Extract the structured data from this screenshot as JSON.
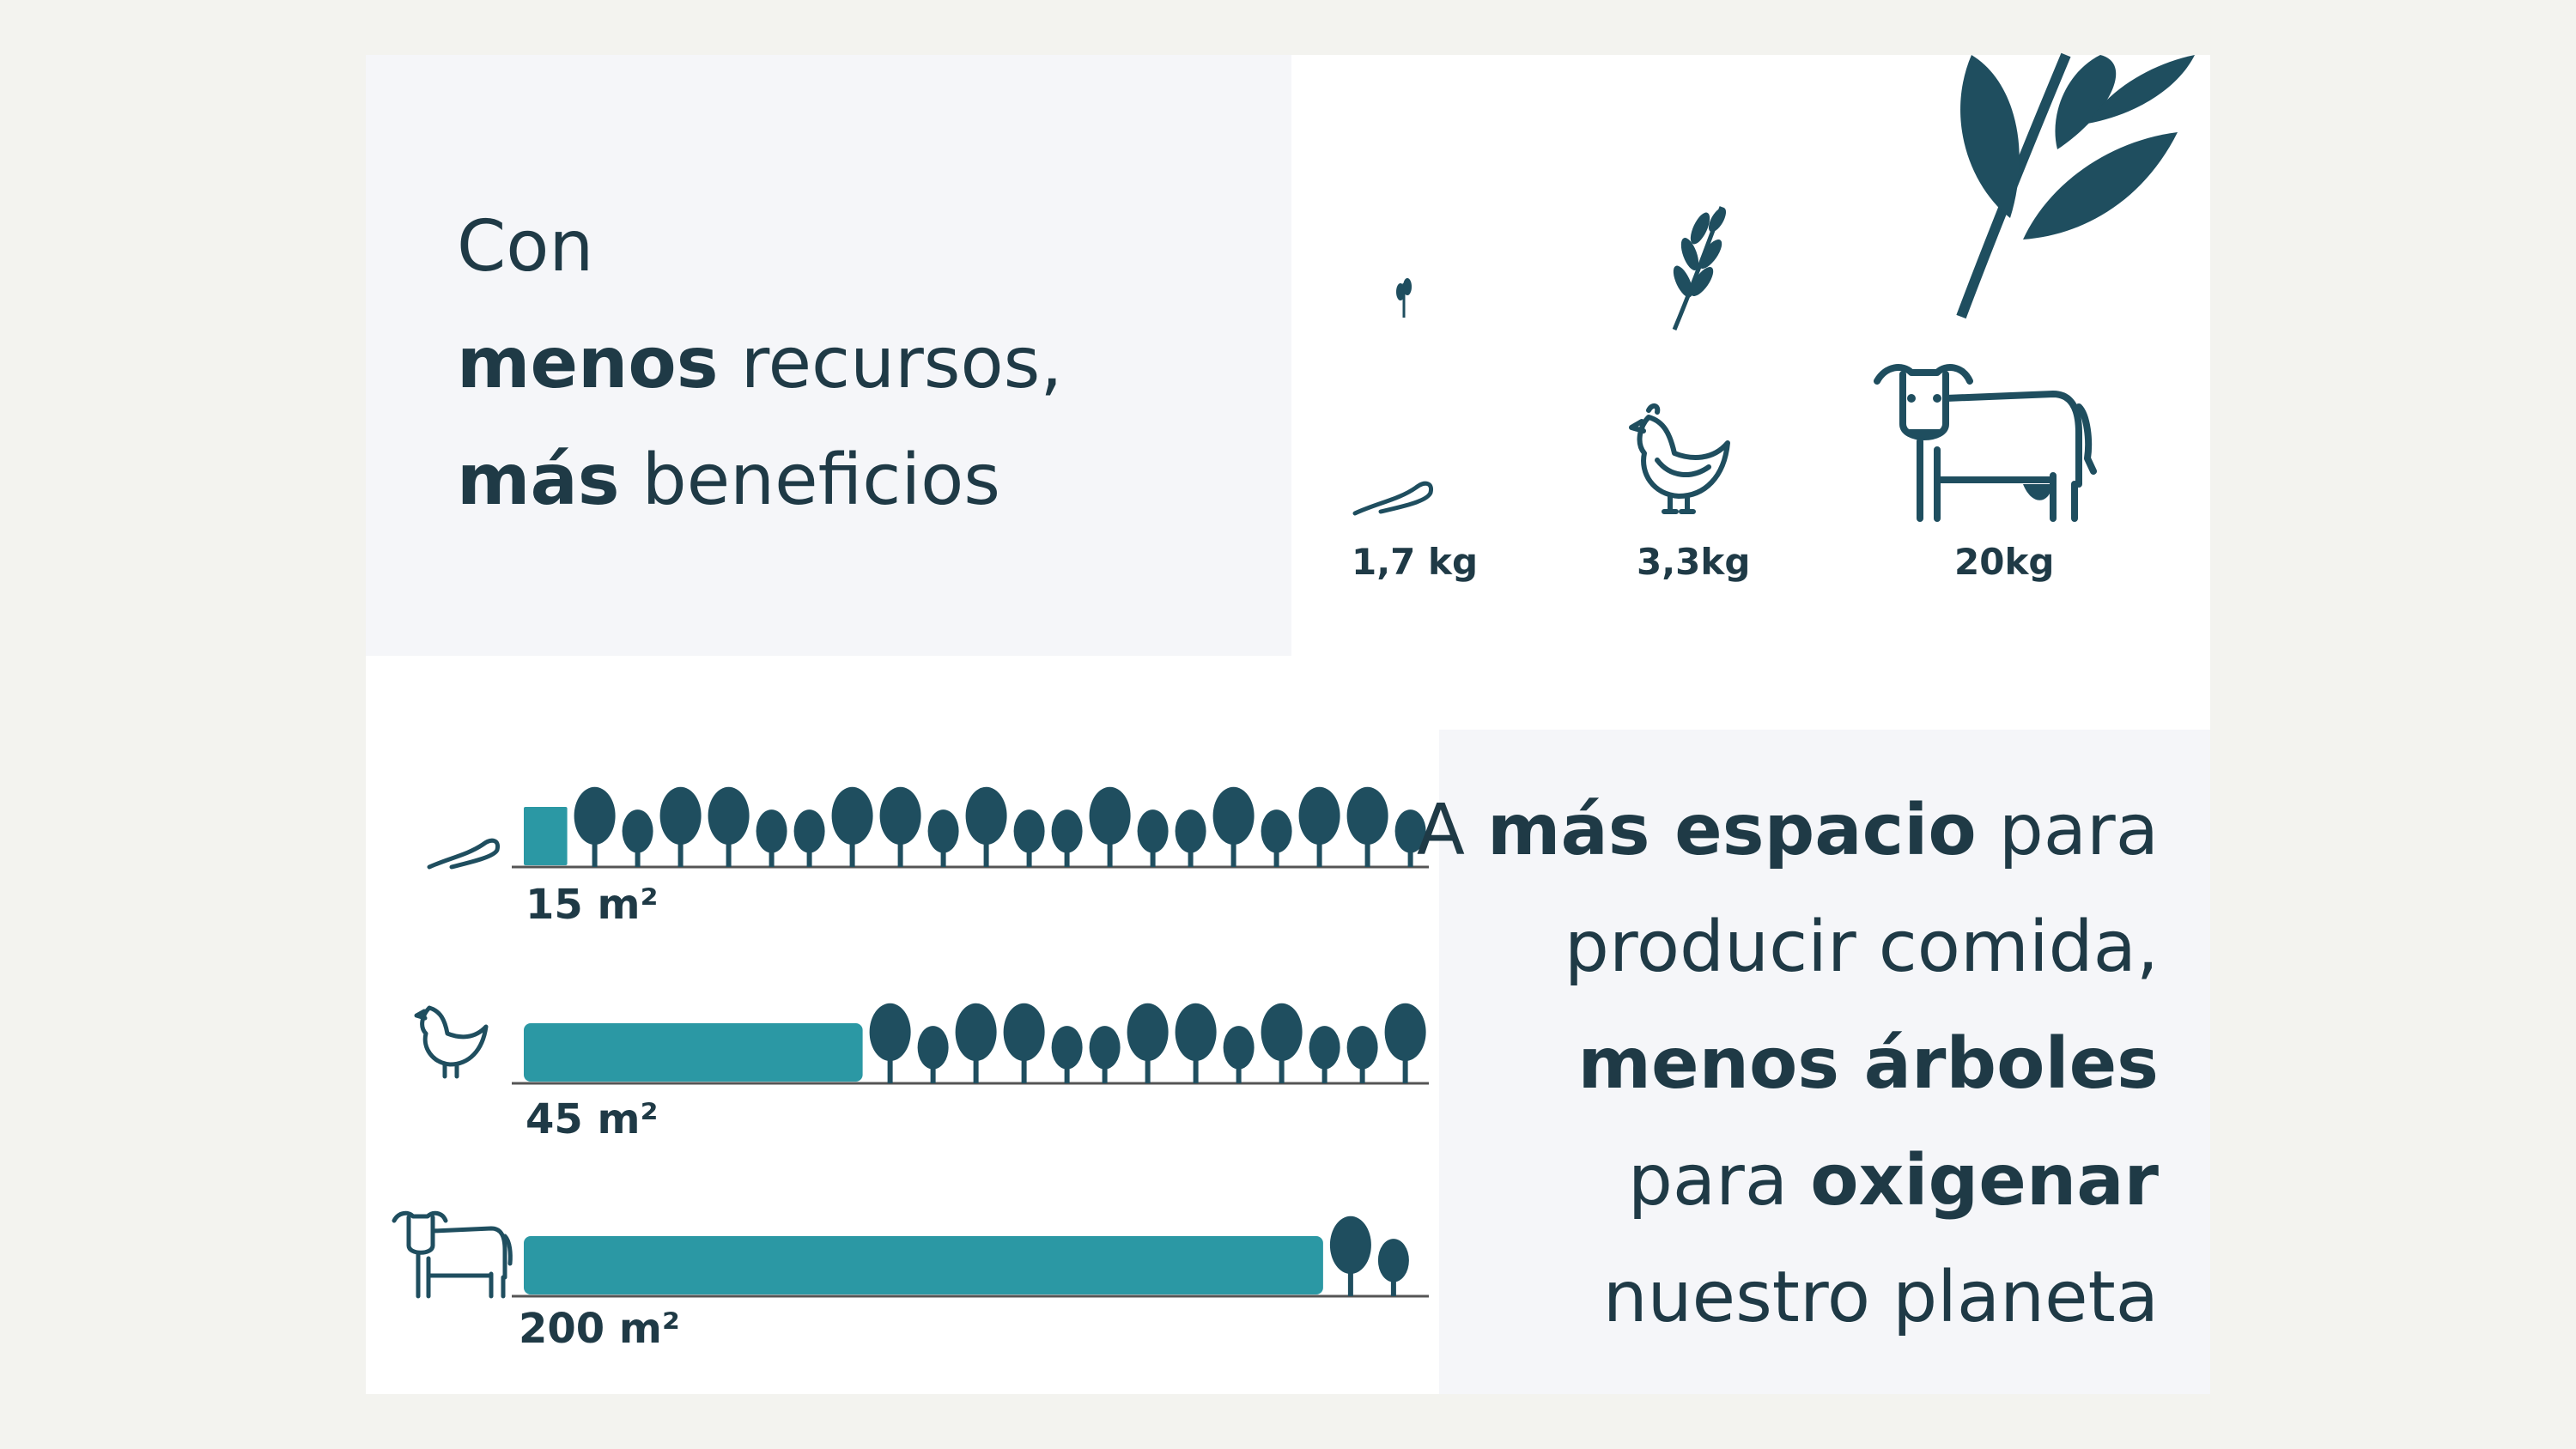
{
  "colors": {
    "dark": "#1f4e5f",
    "teal": "#2b98a4",
    "text": "#1f3a46"
  },
  "headline": {
    "line1": "Con",
    "line2_bold": "menos",
    "line2_regular": "recursos,",
    "line3_bold": "más",
    "line3_regular": "beneficios"
  },
  "feed": [
    {
      "animal": "worm-icon",
      "amount": "1,7 kg"
    },
    {
      "animal": "chicken-icon",
      "amount": "3,3kg"
    },
    {
      "animal": "cow-icon",
      "amount": "20kg"
    }
  ],
  "land": [
    {
      "animal": "worm-icon",
      "area": "15 m²",
      "fill": 0.05
    },
    {
      "animal": "chicken-icon",
      "area": "45 m²",
      "fill": 0.39
    },
    {
      "animal": "cow-icon",
      "area": "200 m²",
      "fill": 0.92
    }
  ],
  "message": {
    "l1_a": "A",
    "l1_bold": "más espacio",
    "l1_b": "para",
    "l2": "producir comida,",
    "l3_bold": "menos árboles",
    "l4_a": "para",
    "l4_bold": "oxigenar",
    "l5": "nuestro planeta"
  }
}
